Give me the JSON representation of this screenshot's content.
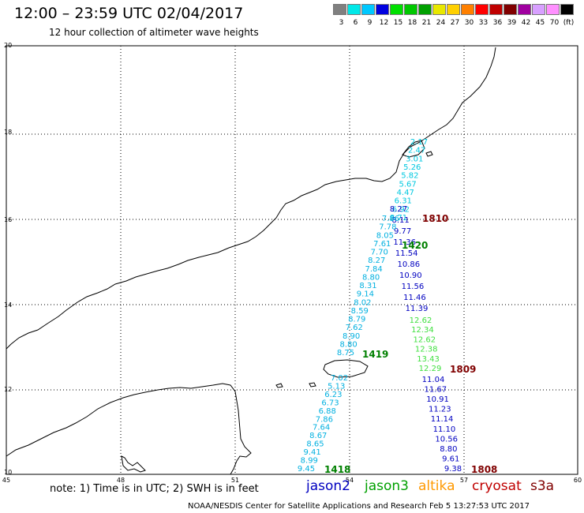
{
  "title": "12:00 – 23:59 UTC 02/04/2017",
  "subtitle": "12 hour collection of altimeter wave heights",
  "color_scale": {
    "colors": [
      "#808080",
      "#00e8e8",
      "#00c8ff",
      "#0000e0",
      "#00e000",
      "#00c800",
      "#00a000",
      "#e8e800",
      "#ffd000",
      "#ff8000",
      "#ff0000",
      "#c00000",
      "#800000",
      "#a000a0",
      "#d8a0ff",
      "#ff90ff",
      "#000000"
    ],
    "ticks": [
      "3",
      "6",
      "9",
      "12",
      "15",
      "18",
      "21",
      "24",
      "27",
      "30",
      "33",
      "36",
      "39",
      "42",
      "45",
      "70",
      "(ft)"
    ]
  },
  "axes": {
    "lon_labels": [
      "45",
      "48",
      "51",
      "54",
      "57",
      "60"
    ],
    "lat_labels": [
      "20",
      "18",
      "16",
      "14",
      "12",
      "10"
    ]
  },
  "tracks": {
    "jason2_a": {
      "values": [
        "8.27",
        "8.11",
        "9.77",
        "11.36",
        "11.54",
        "10.86",
        "10.90",
        "11.56",
        "11.46",
        "11.39"
      ]
    },
    "jason3": {
      "values": [
        "12.62",
        "12.34",
        "12.62",
        "12.38",
        "13.43",
        "12.29"
      ]
    },
    "jason2_b": {
      "values": [
        "11.04",
        "11.67",
        "10.91",
        "11.23",
        "11.14",
        "11.10",
        "10.56",
        "8.80",
        "9.61",
        "9.38"
      ]
    },
    "altika_top": {
      "values": [
        "2.17",
        "2.47",
        "3.01",
        "5.26",
        "5.82",
        "5.67",
        "4.47",
        "6.31",
        "6.92",
        "8.71"
      ]
    },
    "cyan_mid": {
      "values": [
        "7.86",
        "7.78",
        "8.05",
        "7.61",
        "7.70",
        "8.27",
        "7.84",
        "8.80",
        "8.31",
        "9.14",
        "8.02",
        "8.59",
        "8.79",
        "7.62",
        "8.90",
        "8.80",
        "8.75"
      ]
    },
    "cyan_low": {
      "values": [
        "7.02",
        "5.13",
        "6.23",
        "6.73",
        "6.88",
        "7.86",
        "7.64",
        "8.67",
        "8.65",
        "9.41",
        "8.99",
        "9.45"
      ]
    },
    "time_labels": [
      {
        "text": "1810",
        "color": "#800000"
      },
      {
        "text": "1420",
        "color": "#008000"
      },
      {
        "text": "1419",
        "color": "#008000"
      },
      {
        "text": "1809",
        "color": "#800000"
      },
      {
        "text": "1418",
        "color": "#008000"
      },
      {
        "text": "1808",
        "color": "#800000"
      }
    ]
  },
  "note": "note: 1) Time is in UTC; 2) SWH is in feet",
  "legend": [
    {
      "name": "jason2",
      "color": "#0000c0"
    },
    {
      "name": "jason3",
      "color": "#00a000"
    },
    {
      "name": "altika",
      "color": "#ff9900"
    },
    {
      "name": "cryosat",
      "color": "#c00000"
    },
    {
      "name": "s3a",
      "color": "#800000"
    }
  ],
  "credit": "NOAA/NESDIS Center for Satellite Applications and Research   Feb  5 13:27:53 UTC 2017"
}
